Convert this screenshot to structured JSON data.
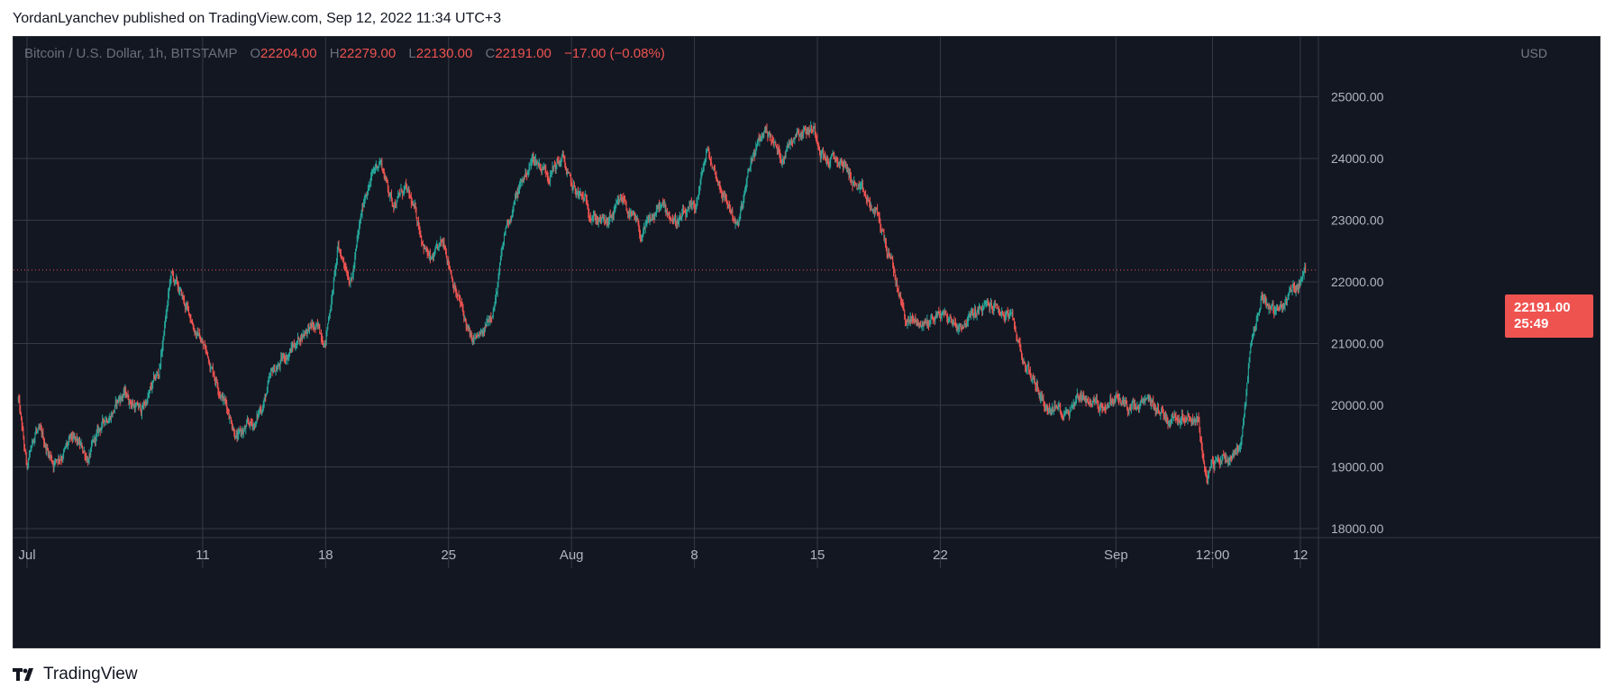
{
  "publisher_line": "YordanLyanchev published on TradingView.com, Sep 12, 2022 11:34 UTC+3",
  "brand": "TradingView",
  "colors": {
    "background": "#131722",
    "grid": "#363a45",
    "up": "#26a69a",
    "down": "#ef5350",
    "text": "#b2b5be"
  },
  "legend": {
    "symbol": "Bitcoin / U.S. Dollar, 1h, BITSTAMP",
    "open_label": "O",
    "open": "22204.00",
    "high_label": "H",
    "high": "22279.00",
    "low_label": "L",
    "low": "22130.00",
    "close_label": "C",
    "close": "22191.00",
    "change": "−17.00 (−0.08%)"
  },
  "price_tag": {
    "price": "22191.00",
    "countdown": "25:49"
  },
  "chart_data": {
    "type": "candlestick",
    "currency_label": "USD",
    "ylim": [
      17800,
      25400
    ],
    "y_ticks": [
      {
        "value": 18000,
        "label": "18000.00"
      },
      {
        "value": 19000,
        "label": "19000.00"
      },
      {
        "value": 20000,
        "label": "20000.00"
      },
      {
        "value": 21000,
        "label": "21000.00"
      },
      {
        "value": 22000,
        "label": "22000.00"
      },
      {
        "value": 23000,
        "label": "23000.00"
      },
      {
        "value": 24000,
        "label": "24000.00"
      },
      {
        "value": 25000,
        "label": "25000.00"
      }
    ],
    "x_range_days": [
      0,
      73.5
    ],
    "x_ticks": [
      {
        "day": 0.5,
        "label": "Jul"
      },
      {
        "day": 10.5,
        "label": "11"
      },
      {
        "day": 17.5,
        "label": "18"
      },
      {
        "day": 24.5,
        "label": "25"
      },
      {
        "day": 31.5,
        "label": "Aug"
      },
      {
        "day": 38.5,
        "label": "8"
      },
      {
        "day": 45.5,
        "label": "15"
      },
      {
        "day": 52.5,
        "label": "22"
      },
      {
        "day": 62.5,
        "label": "Sep"
      },
      {
        "day": 68.0,
        "label": "12:00"
      },
      {
        "day": 73.0,
        "label": "12"
      }
    ],
    "last_price": 22191,
    "price_path": [
      [
        0,
        20100
      ],
      [
        0.5,
        18900
      ],
      [
        1,
        19600
      ],
      [
        2,
        19100
      ],
      [
        3,
        19400
      ],
      [
        4,
        19150
      ],
      [
        5,
        19800
      ],
      [
        6,
        20200
      ],
      [
        7,
        19900
      ],
      [
        8,
        20500
      ],
      [
        8.7,
        22100
      ],
      [
        9.5,
        21600
      ],
      [
        10.5,
        21000
      ],
      [
        11.5,
        20300
      ],
      [
        12.5,
        19500
      ],
      [
        13.5,
        19700
      ],
      [
        14.5,
        20500
      ],
      [
        15.5,
        20900
      ],
      [
        16.5,
        21300
      ],
      [
        17.5,
        21100
      ],
      [
        18.2,
        22500
      ],
      [
        19,
        22100
      ],
      [
        19.8,
        23500
      ],
      [
        20.6,
        24000
      ],
      [
        21.3,
        23300
      ],
      [
        22,
        23500
      ],
      [
        22.7,
        23000
      ],
      [
        23.5,
        22300
      ],
      [
        24.3,
        22600
      ],
      [
        25,
        21800
      ],
      [
        25.8,
        21000
      ],
      [
        26.5,
        21100
      ],
      [
        27.2,
        21800
      ],
      [
        27.8,
        22900
      ],
      [
        28.5,
        23500
      ],
      [
        29.3,
        24000
      ],
      [
        30.2,
        23800
      ],
      [
        31,
        24000
      ],
      [
        31.5,
        23500
      ],
      [
        32.5,
        23200
      ],
      [
        33.5,
        22900
      ],
      [
        34.5,
        23300
      ],
      [
        35.5,
        22700
      ],
      [
        36.5,
        23200
      ],
      [
        37.5,
        23000
      ],
      [
        38.5,
        23100
      ],
      [
        39.2,
        24100
      ],
      [
        40.2,
        23400
      ],
      [
        41,
        22900
      ],
      [
        41.8,
        24000
      ],
      [
        42.6,
        24500
      ],
      [
        43.4,
        24000
      ],
      [
        44.3,
        24500
      ],
      [
        45.3,
        24500
      ],
      [
        46,
        24000
      ],
      [
        47,
        23900
      ],
      [
        48,
        23400
      ],
      [
        49,
        23000
      ],
      [
        49.8,
        22200
      ],
      [
        50.5,
        21400
      ],
      [
        51.5,
        21300
      ],
      [
        52.5,
        21500
      ],
      [
        53.5,
        21300
      ],
      [
        54.5,
        21500
      ],
      [
        55.5,
        21600
      ],
      [
        56.5,
        21400
      ],
      [
        57.3,
        20700
      ],
      [
        58.5,
        20000
      ],
      [
        59.5,
        19900
      ],
      [
        60.5,
        20200
      ],
      [
        61.5,
        20000
      ],
      [
        62.5,
        20100
      ],
      [
        63.5,
        19900
      ],
      [
        64.5,
        20000
      ],
      [
        65.5,
        19800
      ],
      [
        66.5,
        19900
      ],
      [
        67.2,
        19800
      ],
      [
        67.6,
        18800
      ],
      [
        68.3,
        19100
      ],
      [
        69,
        19200
      ],
      [
        69.6,
        19400
      ],
      [
        70.2,
        21000
      ],
      [
        70.8,
        21800
      ],
      [
        71.6,
        21500
      ],
      [
        72.4,
        21800
      ],
      [
        73.0,
        22000
      ],
      [
        73.3,
        22191
      ]
    ]
  }
}
